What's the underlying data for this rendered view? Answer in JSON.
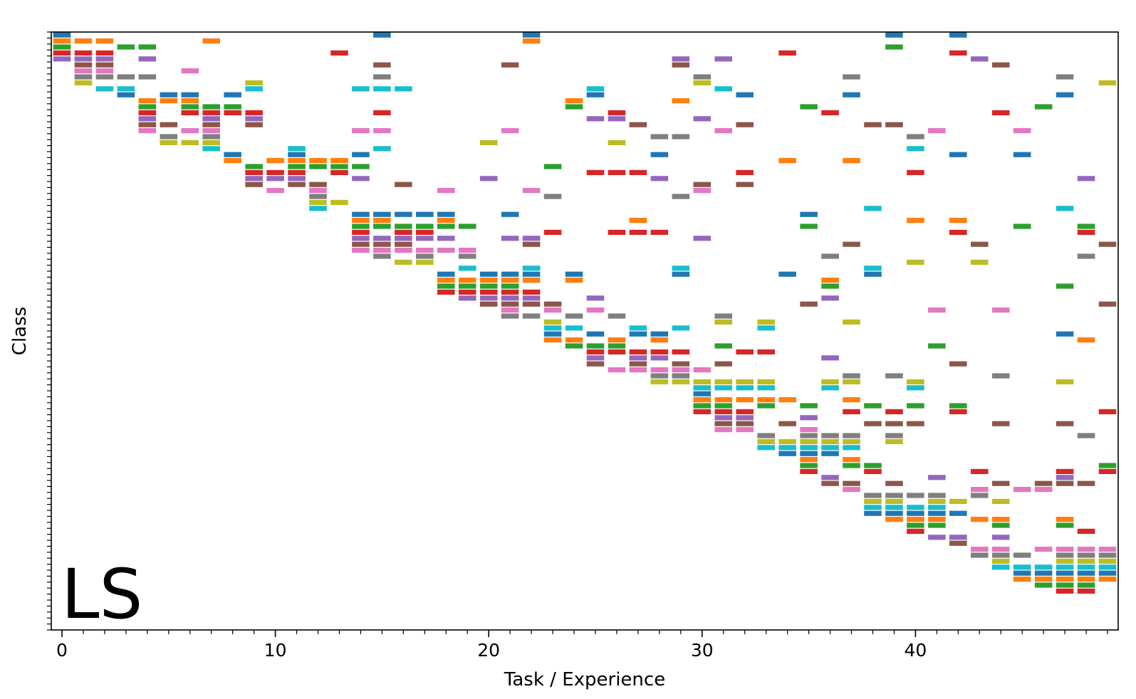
{
  "chart_data": {
    "type": "heatmap",
    "title": "",
    "xlabel": "Task / Experience",
    "ylabel": "Class",
    "panel_label": "LS",
    "xlim": [
      -0.5,
      49.5
    ],
    "ylim": [
      100,
      0
    ],
    "x_ticks": [
      0,
      10,
      20,
      30,
      40
    ],
    "x_tick_labels": [
      "0",
      "10",
      "20",
      "30",
      "40"
    ],
    "minor_x_ticks_every": 1,
    "minor_y_ticks_every": 1,
    "y_tick_labels_shown": false,
    "grid": false,
    "color_cycle": [
      "#1f77b4",
      "#ff7f0e",
      "#2ca02c",
      "#d62728",
      "#9467bd",
      "#8c564b",
      "#e377c2",
      "#7f7f7f",
      "#bcbd22",
      "#17becf"
    ],
    "legend": "none",
    "tasks": [
      {
        "task": 0,
        "classes": [
          0,
          1,
          2,
          3,
          4
        ]
      },
      {
        "task": 1,
        "classes": [
          1,
          3,
          4,
          5,
          6,
          7,
          8
        ]
      },
      {
        "task": 2,
        "classes": [
          1,
          3,
          4,
          5,
          6,
          7,
          9
        ]
      },
      {
        "task": 3,
        "classes": [
          2,
          7,
          9,
          10
        ]
      },
      {
        "task": 4,
        "classes": [
          2,
          4,
          7,
          11,
          12,
          13,
          14,
          15,
          16
        ]
      },
      {
        "task": 5,
        "classes": [
          10,
          11,
          15,
          17,
          18
        ]
      },
      {
        "task": 6,
        "classes": [
          6,
          10,
          11,
          12,
          13,
          16,
          18
        ]
      },
      {
        "task": 7,
        "classes": [
          1,
          12,
          13,
          14,
          15,
          16,
          17,
          18,
          19
        ]
      },
      {
        "task": 8,
        "classes": [
          10,
          12,
          13,
          20,
          21
        ]
      },
      {
        "task": 9,
        "classes": [
          8,
          9,
          13,
          14,
          15,
          22,
          23,
          24,
          25
        ]
      },
      {
        "task": 10,
        "classes": [
          21,
          23,
          24,
          26
        ]
      },
      {
        "task": 11,
        "classes": [
          19,
          20,
          21,
          22,
          23,
          24,
          25
        ]
      },
      {
        "task": 12,
        "classes": [
          21,
          22,
          25,
          26,
          27,
          28,
          29
        ]
      },
      {
        "task": 13,
        "classes": [
          3,
          21,
          22,
          23,
          28
        ]
      },
      {
        "task": 14,
        "classes": [
          9,
          16,
          20,
          22,
          24,
          30,
          31,
          32,
          33,
          34,
          35,
          36
        ]
      },
      {
        "task": 15,
        "classes": [
          0,
          5,
          7,
          9,
          13,
          16,
          19,
          30,
          31,
          32,
          34,
          35,
          36,
          37
        ]
      },
      {
        "task": 16,
        "classes": [
          9,
          25,
          30,
          32,
          33,
          34,
          35,
          36,
          38
        ]
      },
      {
        "task": 17,
        "classes": [
          30,
          32,
          33,
          34,
          36,
          37,
          38
        ]
      },
      {
        "task": 18,
        "classes": [
          26,
          30,
          31,
          32,
          34,
          36,
          40,
          41,
          42,
          43
        ]
      },
      {
        "task": 19,
        "classes": [
          32,
          36,
          37,
          39,
          41,
          42,
          43,
          44
        ]
      },
      {
        "task": 20,
        "classes": [
          18,
          24,
          40,
          41,
          42,
          43,
          44,
          45
        ]
      },
      {
        "task": 21,
        "classes": [
          5,
          16,
          30,
          34,
          40,
          41,
          42,
          43,
          44,
          45,
          46,
          47
        ]
      },
      {
        "task": 22,
        "classes": [
          0,
          1,
          26,
          34,
          35,
          39,
          40,
          41,
          43,
          44,
          45,
          47
        ]
      },
      {
        "task": 23,
        "classes": [
          22,
          27,
          33,
          45,
          46,
          48,
          49,
          50,
          51
        ]
      },
      {
        "task": 24,
        "classes": [
          11,
          12,
          40,
          41,
          47,
          49,
          51,
          52
        ]
      },
      {
        "task": 25,
        "classes": [
          9,
          10,
          14,
          23,
          44,
          46,
          50,
          52,
          53,
          54,
          55
        ]
      },
      {
        "task": 26,
        "classes": [
          13,
          14,
          18,
          23,
          33,
          47,
          51,
          52,
          53,
          56
        ]
      },
      {
        "task": 27,
        "classes": [
          15,
          23,
          31,
          33,
          49,
          50,
          53,
          54,
          55,
          56
        ]
      },
      {
        "task": 28,
        "classes": [
          17,
          20,
          24,
          33,
          50,
          51,
          53,
          54,
          56,
          57,
          58
        ]
      },
      {
        "task": 29,
        "classes": [
          4,
          5,
          11,
          17,
          27,
          39,
          40,
          49,
          53,
          55,
          56,
          57,
          58
        ]
      },
      {
        "task": 30,
        "classes": [
          7,
          8,
          14,
          25,
          26,
          34,
          56,
          58,
          59,
          60,
          61,
          62,
          63
        ]
      },
      {
        "task": 31,
        "classes": [
          4,
          9,
          16,
          47,
          48,
          52,
          55,
          58,
          59,
          61,
          62,
          63,
          64,
          65,
          66
        ]
      },
      {
        "task": 32,
        "classes": [
          10,
          15,
          23,
          25,
          53,
          58,
          59,
          61,
          63,
          64,
          65,
          66
        ]
      },
      {
        "task": 33,
        "classes": [
          48,
          49,
          53,
          58,
          59,
          61,
          62,
          67,
          68,
          69
        ]
      },
      {
        "task": 34,
        "classes": [
          3,
          21,
          40,
          61,
          65,
          68,
          69,
          70
        ]
      },
      {
        "task": 35,
        "classes": [
          12,
          30,
          32,
          45,
          62,
          64,
          66,
          67,
          68,
          69,
          70,
          71,
          72,
          73
        ]
      },
      {
        "task": 36,
        "classes": [
          13,
          37,
          41,
          42,
          44,
          54,
          58,
          59,
          67,
          68,
          69,
          70,
          74,
          75
        ]
      },
      {
        "task": 37,
        "classes": [
          7,
          10,
          21,
          35,
          48,
          57,
          58,
          61,
          63,
          67,
          68,
          69,
          71,
          72,
          75,
          76
        ]
      },
      {
        "task": 38,
        "classes": [
          15,
          29,
          39,
          40,
          62,
          65,
          72,
          73,
          77,
          78,
          79,
          80
        ]
      },
      {
        "task": 39,
        "classes": [
          0,
          2,
          15,
          57,
          63,
          65,
          67,
          68,
          75,
          77,
          78,
          79,
          80,
          81
        ]
      },
      {
        "task": 40,
        "classes": [
          17,
          19,
          23,
          31,
          38,
          58,
          59,
          62,
          65,
          77,
          79,
          80,
          81,
          82,
          83
        ]
      },
      {
        "task": 41,
        "classes": [
          16,
          46,
          52,
          74,
          77,
          78,
          79,
          80,
          81,
          82,
          84
        ]
      },
      {
        "task": 42,
        "classes": [
          0,
          3,
          20,
          31,
          33,
          55,
          62,
          63,
          78,
          80,
          84,
          85
        ]
      },
      {
        "task": 43,
        "classes": [
          4,
          35,
          38,
          73,
          76,
          77,
          81,
          86,
          87
        ]
      },
      {
        "task": 44,
        "classes": [
          5,
          13,
          46,
          57,
          65,
          75,
          78,
          81,
          82,
          84,
          86,
          87,
          88,
          89
        ]
      },
      {
        "task": 45,
        "classes": [
          16,
          20,
          32,
          76,
          87,
          89,
          90,
          91
        ]
      },
      {
        "task": 46,
        "classes": [
          12,
          75,
          76,
          86,
          89,
          90,
          91,
          92
        ]
      },
      {
        "task": 47,
        "classes": [
          7,
          10,
          29,
          42,
          50,
          58,
          65,
          73,
          74,
          75,
          81,
          82,
          86,
          87,
          88,
          89,
          90,
          91,
          92,
          93
        ]
      },
      {
        "task": 48,
        "classes": [
          24,
          32,
          33,
          37,
          51,
          67,
          75,
          83,
          86,
          87,
          88,
          89,
          90,
          91,
          92,
          93
        ]
      },
      {
        "task": 49,
        "classes": [
          8,
          35,
          45,
          63,
          72,
          73,
          86,
          87,
          88,
          89,
          90,
          91
        ]
      }
    ]
  }
}
